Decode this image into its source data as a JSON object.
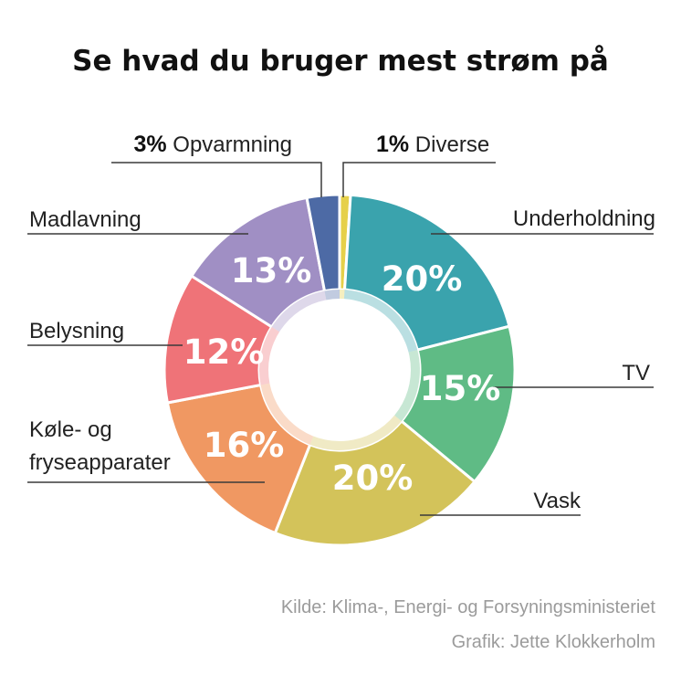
{
  "chart_data": {
    "type": "pie",
    "title": "Se hvad du bruger mest strøm på",
    "categories": [
      "Diverse",
      "Underholdning",
      "TV",
      "Vask",
      "Køle- og fryseapparater",
      "Belysning",
      "Madlavning",
      "Opvarmning"
    ],
    "values": [
      1,
      20,
      15,
      20,
      16,
      12,
      13,
      3
    ],
    "value_labels": [
      "1%",
      "20%",
      "15%",
      "20%",
      "16%",
      "12%",
      "13%",
      "3%"
    ],
    "label_lines": [
      [
        "Diverse"
      ],
      [
        "Underholdning"
      ],
      [
        "TV"
      ],
      [
        "Vask"
      ],
      [
        "Køle- og",
        "fryseapparater"
      ],
      [
        "Belysning"
      ],
      [
        "Madlavning"
      ],
      [
        "Opvarmning"
      ]
    ],
    "colors": [
      "#e6d04a",
      "#3aa3ad",
      "#5fbb85",
      "#d3c35a",
      "#f09862",
      "#ef7378",
      "#a08fc4",
      "#4d6aa5"
    ],
    "style": "donut"
  },
  "footer": {
    "source": "Kilde: Klima-, Energi- og  Forsyningsministeriet",
    "credit": "Grafik: Jette Klokkerholm"
  }
}
